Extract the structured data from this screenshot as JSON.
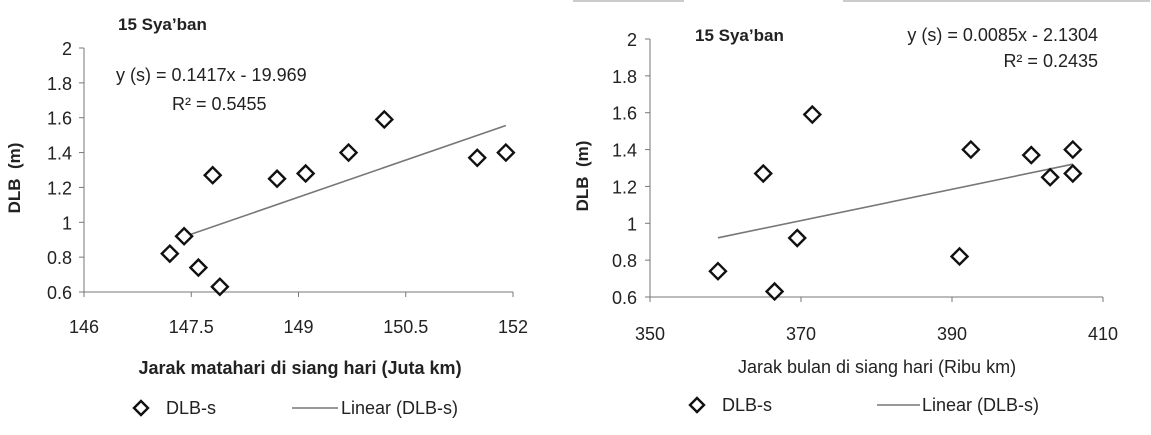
{
  "chart_data": [
    {
      "type": "scatter",
      "title": "15 Sya’ban",
      "xlabel": "Jarak matahari di siang hari (Juta km)",
      "ylabel": "DLB  (m)",
      "xlim": [
        146,
        152
      ],
      "ylim": [
        0.6,
        2
      ],
      "x_ticks": [
        "146",
        "147.5",
        "149",
        "150.5",
        "152"
      ],
      "y_ticks": [
        "0.6",
        "0.8",
        "1",
        "1.2",
        "1.4",
        "1.6",
        "1.8",
        "2"
      ],
      "grid": false,
      "legend": "bottom",
      "equation": "y (s) = 0.1417x - 19.969",
      "r2": "R² = 0.5455",
      "series": [
        {
          "name": "DLB-s",
          "marker": "diamond",
          "points": [
            [
              147.2,
              0.82
            ],
            [
              147.4,
              0.92
            ],
            [
              147.6,
              0.74
            ],
            [
              147.9,
              0.63
            ],
            [
              147.8,
              1.27
            ],
            [
              148.7,
              1.25
            ],
            [
              149.1,
              1.28
            ],
            [
              149.7,
              1.4
            ],
            [
              150.2,
              1.59
            ],
            [
              151.5,
              1.37
            ],
            [
              151.9,
              1.4
            ]
          ]
        },
        {
          "name": "Linear (DLB-s)",
          "type": "line",
          "slope": 0.1417,
          "intercept": -19.969,
          "xrange": [
            147.4,
            151.9
          ]
        }
      ]
    },
    {
      "type": "scatter",
      "title": "15 Sya’ban",
      "xlabel": "Jarak bulan di siang hari (Ribu km)",
      "ylabel": "DLB  (m)",
      "xlim": [
        350,
        410
      ],
      "ylim": [
        0.6,
        2
      ],
      "x_ticks": [
        "350",
        "370",
        "390",
        "410"
      ],
      "y_ticks": [
        "0.6",
        "0.8",
        "1",
        "1.2",
        "1.4",
        "1.6",
        "1.8",
        "2"
      ],
      "grid": false,
      "legend": "bottom",
      "equation": "y (s) = 0.0085x - 2.1304",
      "r2": "R² = 0.2435",
      "series": [
        {
          "name": "DLB-s",
          "marker": "diamond",
          "points": [
            [
              359,
              0.74
            ],
            [
              366.5,
              0.63
            ],
            [
              365,
              1.27
            ],
            [
              369.5,
              0.92
            ],
            [
              371.5,
              1.59
            ],
            [
              391,
              0.82
            ],
            [
              392.5,
              1.4
            ],
            [
              400.5,
              1.37
            ],
            [
              403,
              1.25
            ],
            [
              406,
              1.27
            ],
            [
              406,
              1.4
            ]
          ]
        },
        {
          "name": "Linear (DLB-s)",
          "type": "line",
          "slope": 0.0085,
          "intercept": -2.1304,
          "xrange": [
            359,
            406
          ]
        }
      ]
    }
  ]
}
